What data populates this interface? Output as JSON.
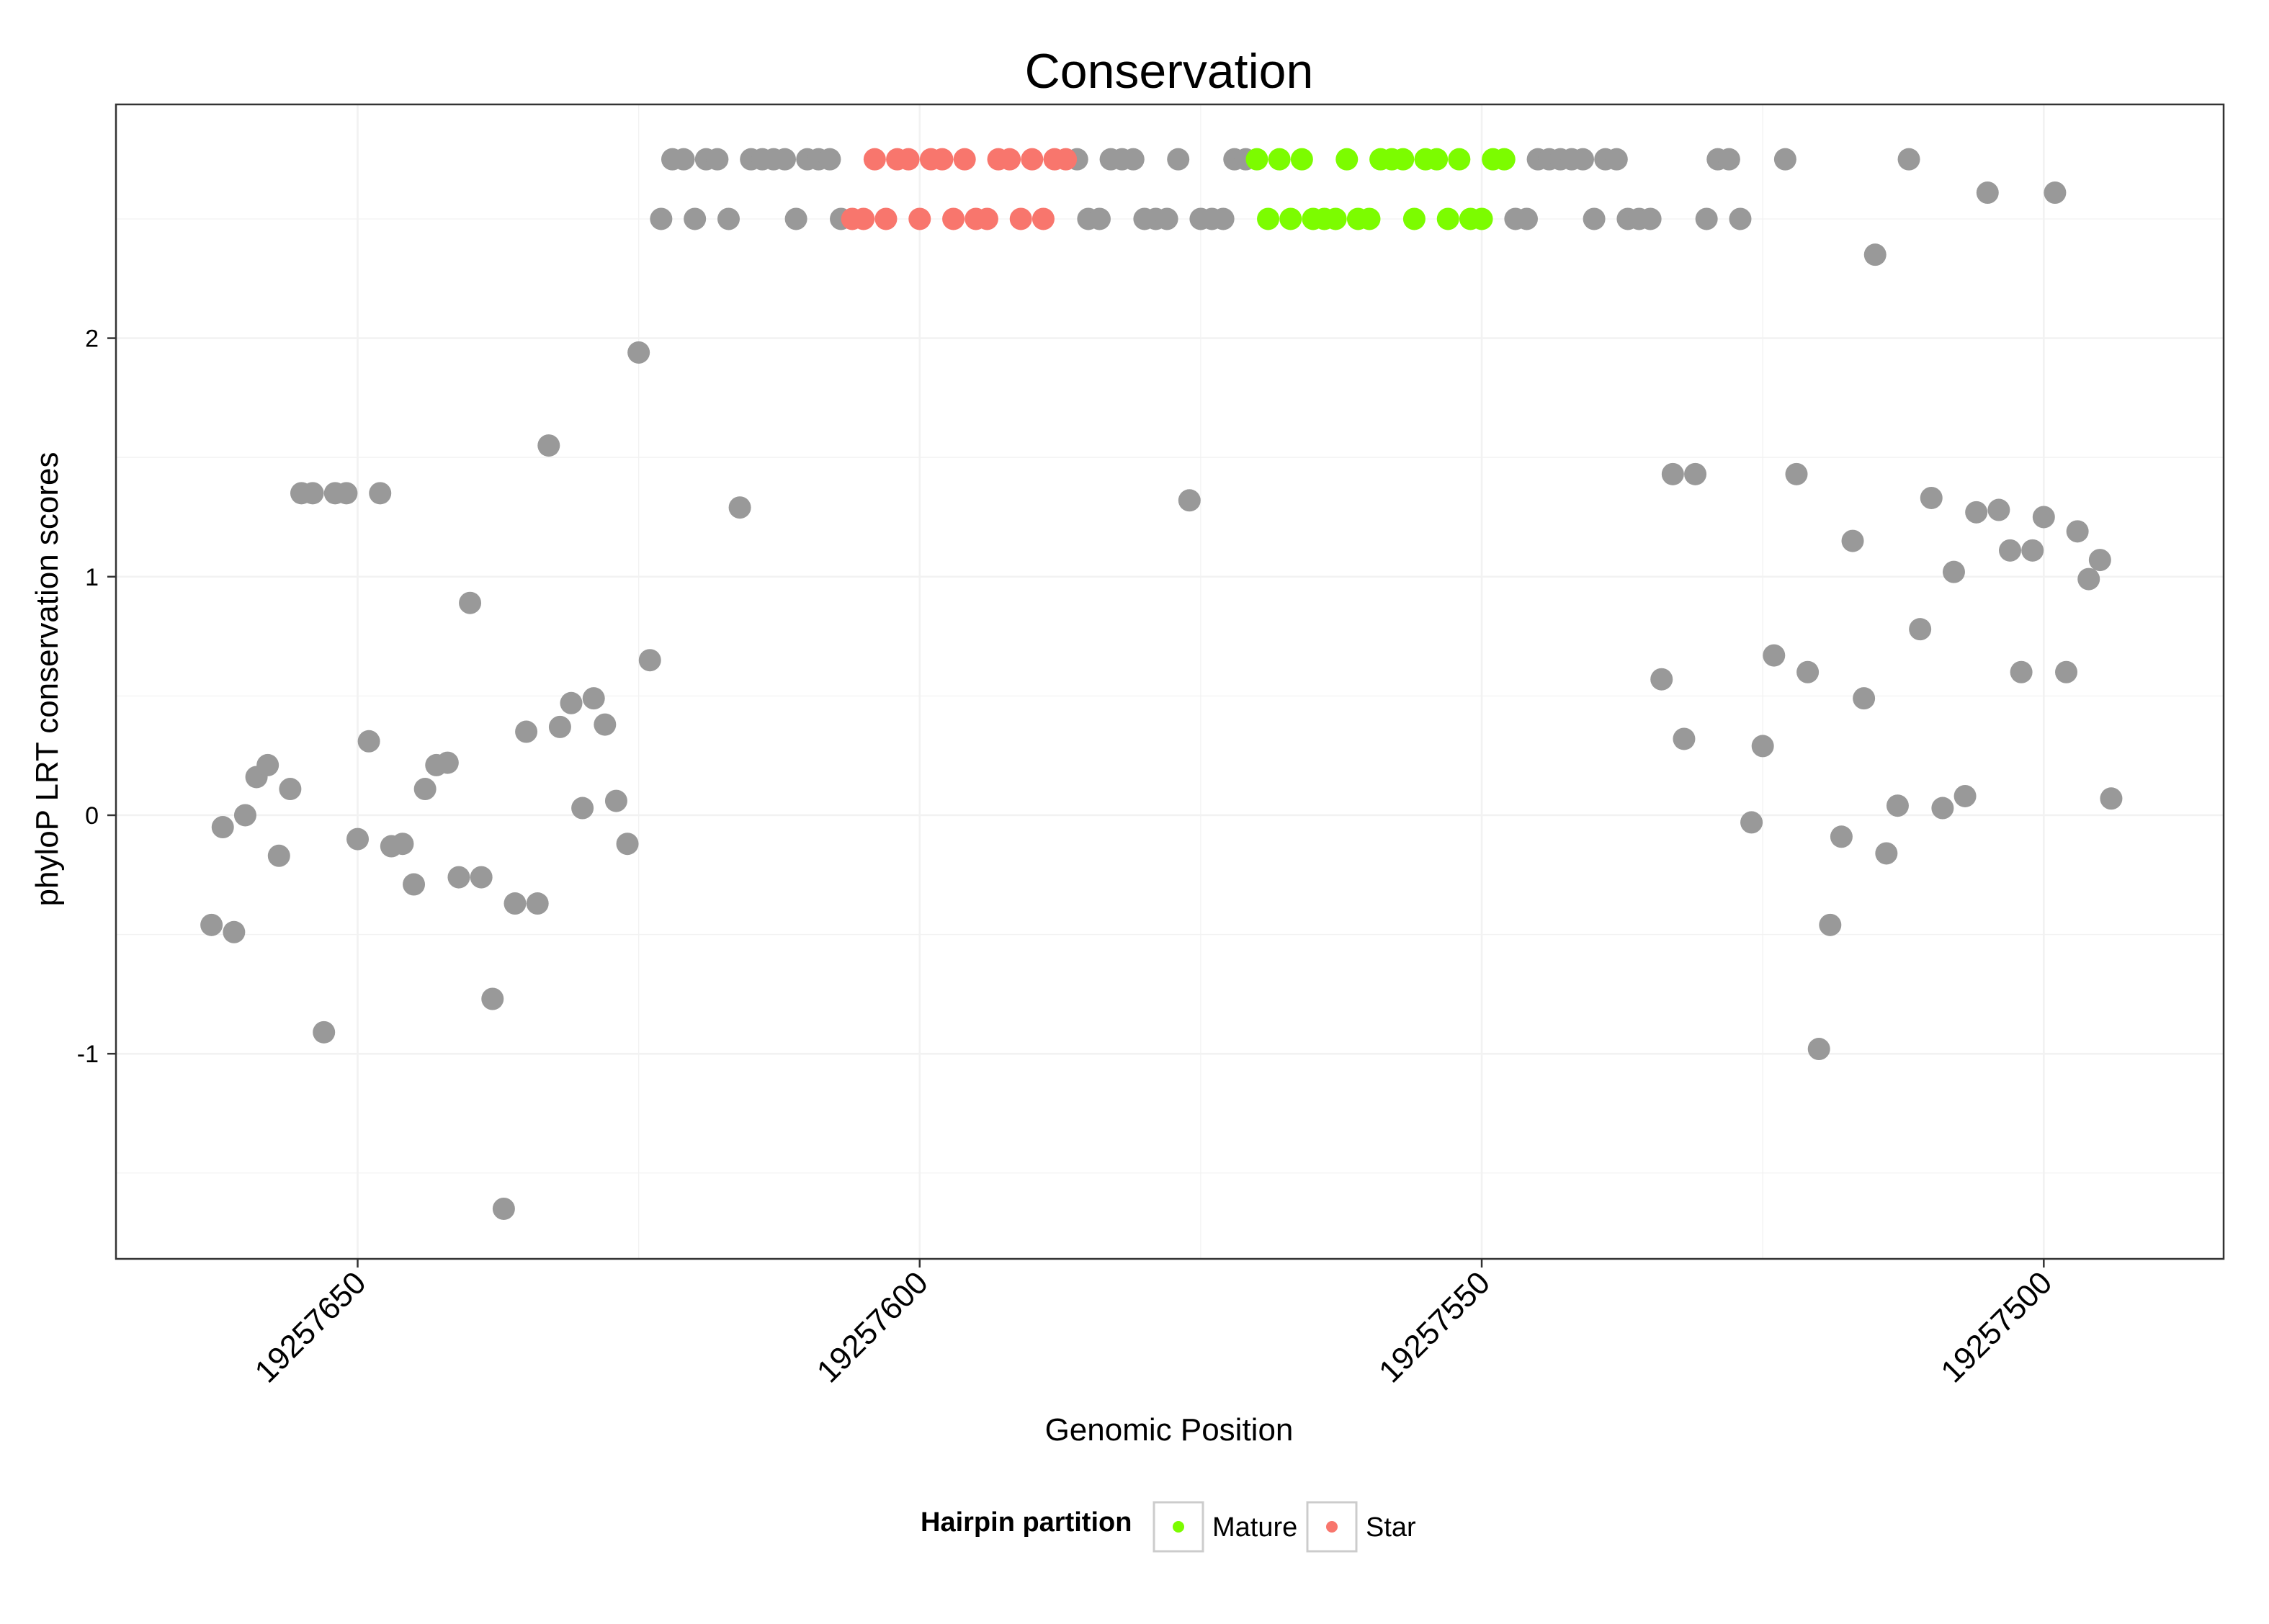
{
  "chart_data": {
    "type": "scatter",
    "title": "Conservation",
    "xlabel": "Genomic Position",
    "ylabel": "phyloP LRT conservation scores",
    "x_reversed": true,
    "xlim": [
      19257671.5,
      19257484.0
    ],
    "ylim": [
      -1.86,
      2.98
    ],
    "x_ticks": [
      {
        "value": 19257650,
        "label": "19257650"
      },
      {
        "value": 19257600,
        "label": "19257600"
      },
      {
        "value": 19257550,
        "label": "19257550"
      },
      {
        "value": 19257500,
        "label": "19257500"
      }
    ],
    "y_ticks": [
      {
        "value": -1,
        "label": "-1"
      },
      {
        "value": 0,
        "label": "0"
      },
      {
        "value": 1,
        "label": "1"
      },
      {
        "value": 2,
        "label": "2"
      }
    ],
    "grid": true,
    "legend": {
      "title": "Hairpin partition",
      "placement": "bottom",
      "entries": [
        {
          "label": "Mature",
          "color": "#7CFC00"
        },
        {
          "label": "Star",
          "color": "#F8766D"
        }
      ]
    },
    "colors": {
      "other": "#999999",
      "Mature": "#7CFC00",
      "Star": "#F8766D",
      "grid": "#F2F2F2",
      "panel_border": "#333333"
    },
    "series": [
      {
        "group": "other",
        "points": [
          [
            19257663,
            -0.46
          ],
          [
            19257662,
            -0.05
          ],
          [
            19257661,
            -0.49
          ],
          [
            19257660,
            0.0
          ],
          [
            19257659,
            0.16
          ],
          [
            19257658,
            0.21
          ],
          [
            19257657,
            -0.17
          ],
          [
            19257656,
            0.11
          ],
          [
            19257655,
            1.35
          ],
          [
            19257654,
            1.35
          ],
          [
            19257653,
            -0.91
          ],
          [
            19257652,
            1.35
          ],
          [
            19257651,
            1.35
          ],
          [
            19257650,
            -0.1
          ],
          [
            19257649,
            0.31
          ],
          [
            19257648,
            1.35
          ],
          [
            19257647,
            -0.13
          ],
          [
            19257646,
            -0.12
          ],
          [
            19257645,
            -0.29
          ],
          [
            19257644,
            0.11
          ],
          [
            19257643,
            0.21
          ],
          [
            19257642,
            0.22
          ],
          [
            19257641,
            -0.26
          ],
          [
            19257640,
            0.89
          ],
          [
            19257639,
            -0.26
          ],
          [
            19257638,
            -0.77
          ],
          [
            19257637,
            -1.65
          ],
          [
            19257636,
            -0.37
          ],
          [
            19257635,
            0.35
          ],
          [
            19257634,
            -0.37
          ],
          [
            19257633,
            1.55
          ],
          [
            19257632,
            0.37
          ],
          [
            19257631,
            0.47
          ],
          [
            19257630,
            0.03
          ],
          [
            19257629,
            0.49
          ],
          [
            19257628,
            0.38
          ],
          [
            19257627,
            0.06
          ],
          [
            19257626,
            -0.12
          ],
          [
            19257625,
            1.94
          ],
          [
            19257624,
            0.65
          ],
          [
            19257623,
            2.5
          ],
          [
            19257622,
            2.75
          ],
          [
            19257621,
            2.75
          ],
          [
            19257620,
            2.5
          ],
          [
            19257619,
            2.75
          ],
          [
            19257618,
            2.75
          ],
          [
            19257617,
            2.5
          ],
          [
            19257616,
            1.29
          ],
          [
            19257615,
            2.75
          ],
          [
            19257614,
            2.75
          ],
          [
            19257613,
            2.75
          ],
          [
            19257612,
            2.75
          ],
          [
            19257611,
            2.5
          ],
          [
            19257610,
            2.75
          ],
          [
            19257609,
            2.75
          ],
          [
            19257608,
            2.75
          ],
          [
            19257607,
            2.5
          ],
          [
            19257586,
            2.75
          ],
          [
            19257585,
            2.5
          ],
          [
            19257584,
            2.5
          ],
          [
            19257583,
            2.75
          ],
          [
            19257582,
            2.75
          ],
          [
            19257581,
            2.75
          ],
          [
            19257580,
            2.5
          ],
          [
            19257579,
            2.5
          ],
          [
            19257578,
            2.5
          ],
          [
            19257577,
            2.75
          ],
          [
            19257576,
            1.32
          ],
          [
            19257575,
            2.5
          ],
          [
            19257574,
            2.5
          ],
          [
            19257573,
            2.5
          ],
          [
            19257572,
            2.75
          ],
          [
            19257571,
            2.75
          ],
          [
            19257547,
            2.5
          ],
          [
            19257546,
            2.5
          ],
          [
            19257545,
            2.75
          ],
          [
            19257544,
            2.75
          ],
          [
            19257543,
            2.75
          ],
          [
            19257542,
            2.75
          ],
          [
            19257541,
            2.75
          ],
          [
            19257540,
            2.5
          ],
          [
            19257539,
            2.75
          ],
          [
            19257538,
            2.75
          ],
          [
            19257537,
            2.5
          ],
          [
            19257536,
            2.5
          ],
          [
            19257535,
            2.5
          ],
          [
            19257534,
            0.57
          ],
          [
            19257533,
            1.43
          ],
          [
            19257532,
            0.32
          ],
          [
            19257531,
            1.43
          ],
          [
            19257530,
            2.5
          ],
          [
            19257529,
            2.75
          ],
          [
            19257528,
            2.75
          ],
          [
            19257527,
            2.5
          ],
          [
            19257526,
            -0.03
          ],
          [
            19257525,
            0.29
          ],
          [
            19257524,
            0.67
          ],
          [
            19257523,
            2.75
          ],
          [
            19257522,
            1.43
          ],
          [
            19257521,
            0.6
          ],
          [
            19257520,
            -0.98
          ],
          [
            19257519,
            -0.46
          ],
          [
            19257518,
            -0.09
          ],
          [
            19257517,
            1.15
          ],
          [
            19257516,
            0.49
          ],
          [
            19257515,
            2.35
          ],
          [
            19257514,
            -0.16
          ],
          [
            19257513,
            0.04
          ],
          [
            19257512,
            2.75
          ],
          [
            19257511,
            0.78
          ],
          [
            19257510,
            1.33
          ],
          [
            19257509,
            0.03
          ],
          [
            19257508,
            1.02
          ],
          [
            19257507,
            0.08
          ],
          [
            19257506,
            1.27
          ],
          [
            19257505,
            2.61
          ],
          [
            19257504,
            1.28
          ],
          [
            19257503,
            1.11
          ],
          [
            19257502,
            0.6
          ],
          [
            19257501,
            1.11
          ],
          [
            19257500,
            1.25
          ],
          [
            19257499,
            2.61
          ],
          [
            19257498,
            0.6
          ],
          [
            19257497,
            1.19
          ],
          [
            19257496,
            0.99
          ],
          [
            19257495,
            1.07
          ],
          [
            19257494,
            0.07
          ]
        ]
      },
      {
        "group": "Star",
        "points": [
          [
            19257606,
            2.5
          ],
          [
            19257605,
            2.5
          ],
          [
            19257604,
            2.75
          ],
          [
            19257603,
            2.5
          ],
          [
            19257602,
            2.75
          ],
          [
            19257601,
            2.75
          ],
          [
            19257600,
            2.5
          ],
          [
            19257599,
            2.75
          ],
          [
            19257598,
            2.75
          ],
          [
            19257597,
            2.5
          ],
          [
            19257596,
            2.75
          ],
          [
            19257595,
            2.5
          ],
          [
            19257594,
            2.5
          ],
          [
            19257593,
            2.75
          ],
          [
            19257592,
            2.75
          ],
          [
            19257591,
            2.5
          ],
          [
            19257590,
            2.75
          ],
          [
            19257589,
            2.5
          ],
          [
            19257588,
            2.75
          ],
          [
            19257587,
            2.75
          ]
        ]
      },
      {
        "group": "Mature",
        "points": [
          [
            19257570,
            2.75
          ],
          [
            19257569,
            2.5
          ],
          [
            19257568,
            2.75
          ],
          [
            19257567,
            2.5
          ],
          [
            19257566,
            2.75
          ],
          [
            19257565,
            2.5
          ],
          [
            19257564,
            2.5
          ],
          [
            19257563,
            2.5
          ],
          [
            19257562,
            2.75
          ],
          [
            19257561,
            2.5
          ],
          [
            19257560,
            2.5
          ],
          [
            19257559,
            2.75
          ],
          [
            19257558,
            2.75
          ],
          [
            19257557,
            2.75
          ],
          [
            19257556,
            2.5
          ],
          [
            19257555,
            2.75
          ],
          [
            19257554,
            2.75
          ],
          [
            19257553,
            2.5
          ],
          [
            19257552,
            2.75
          ],
          [
            19257551,
            2.5
          ],
          [
            19257550,
            2.5
          ],
          [
            19257549,
            2.75
          ],
          [
            19257548,
            2.75
          ]
        ]
      }
    ]
  }
}
